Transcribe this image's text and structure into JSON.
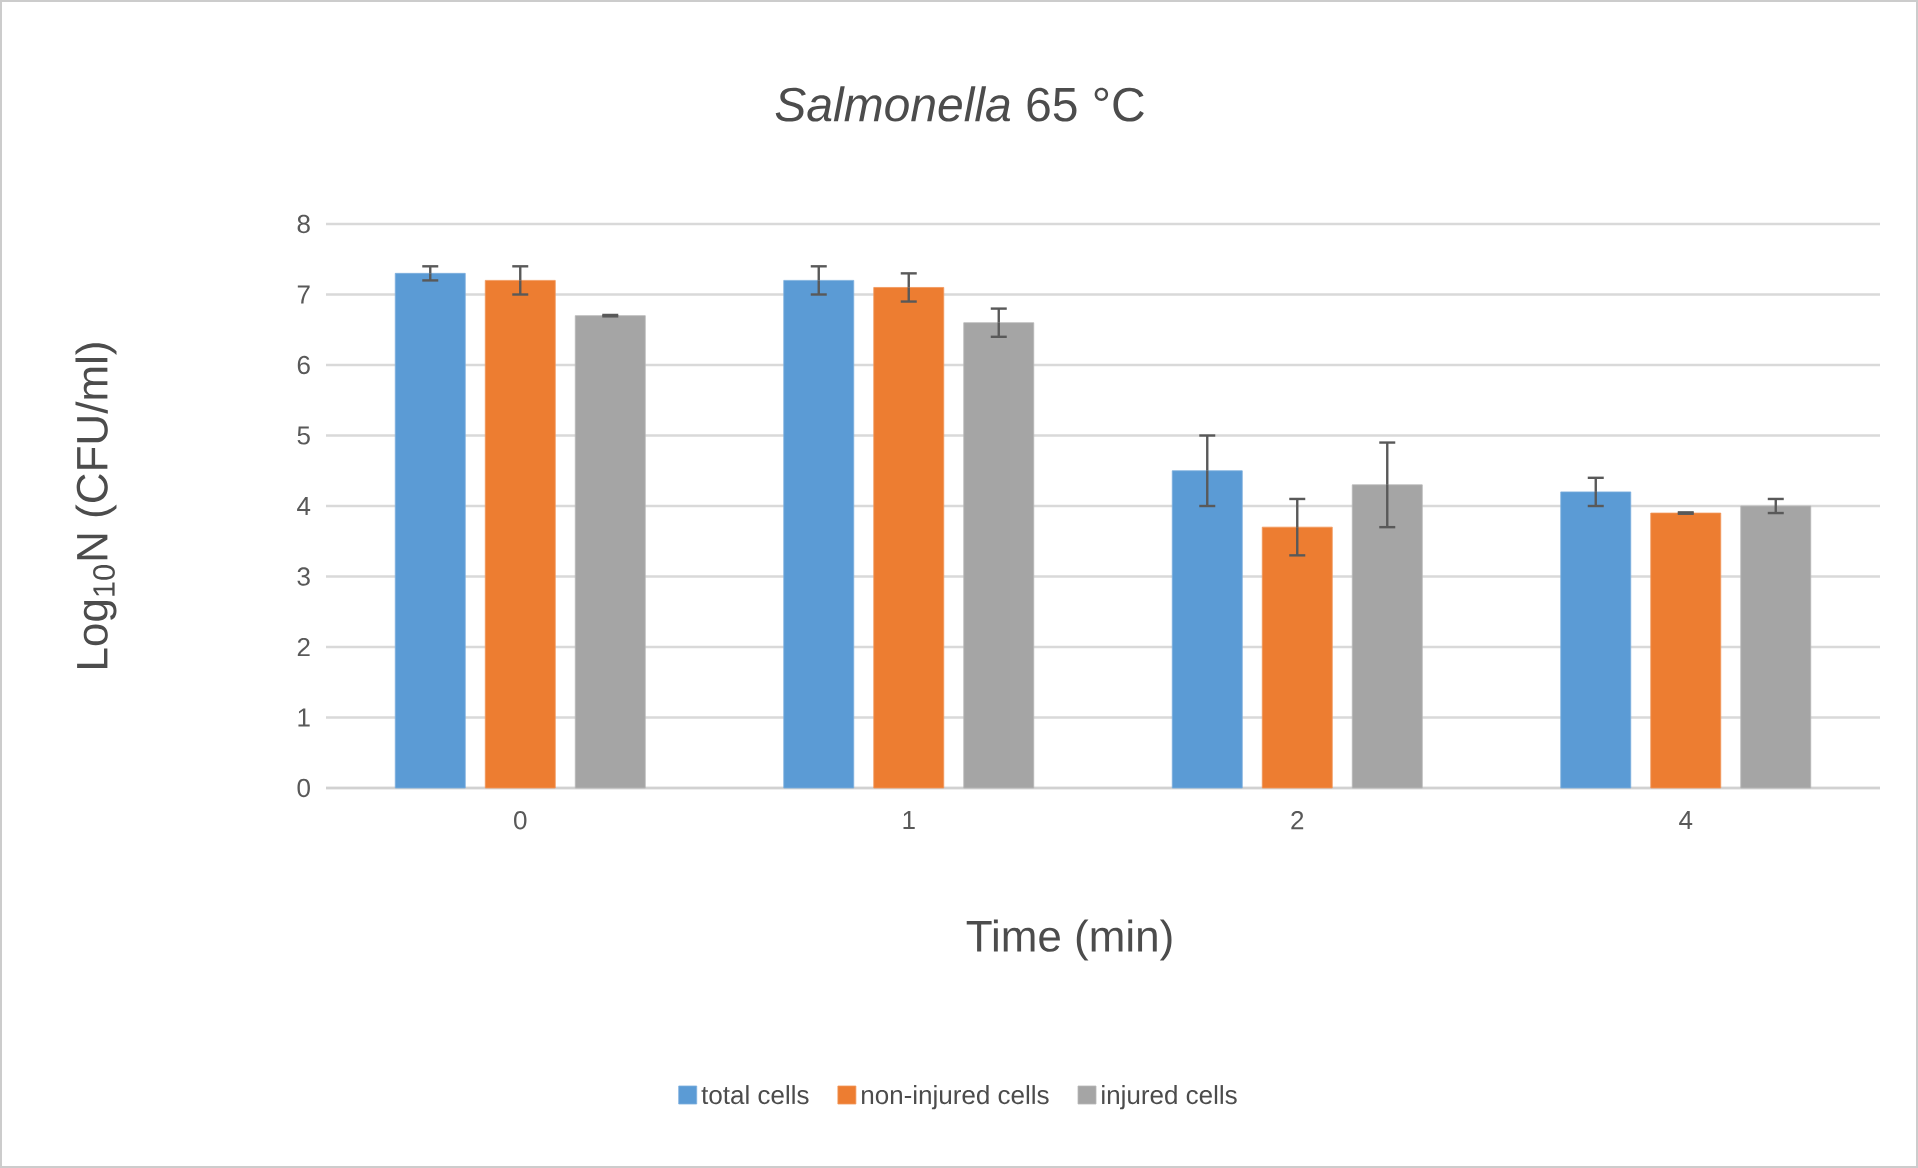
{
  "chart_data": {
    "type": "bar",
    "title": "*Salmonella* 65 °C",
    "xlabel": "Time (min)",
    "ylabel": "Log$_{10}$N (CFU/ml)",
    "categories": [
      "0",
      "1",
      "2",
      "4"
    ],
    "series": [
      {
        "name": "total cells",
        "color": "#5b9bd5",
        "values": [
          7.3,
          7.2,
          4.5,
          4.2
        ],
        "errors": [
          0.1,
          0.2,
          0.5,
          0.2
        ]
      },
      {
        "name": "non-injured cells",
        "color": "#ed7d31",
        "values": [
          7.2,
          7.1,
          3.7,
          3.9
        ],
        "errors": [
          0.2,
          0.2,
          0.4,
          0.01
        ]
      },
      {
        "name": "injured cells",
        "color": "#a5a5a5",
        "values": [
          6.7,
          6.6,
          4.3,
          4.0
        ],
        "errors": [
          0.01,
          0.2,
          0.6,
          0.1
        ]
      }
    ],
    "ylim": [
      0,
      8
    ],
    "yticks": [
      0,
      1,
      2,
      3,
      4,
      5,
      6,
      7,
      8
    ],
    "grid": "y",
    "legend": "bottom"
  }
}
